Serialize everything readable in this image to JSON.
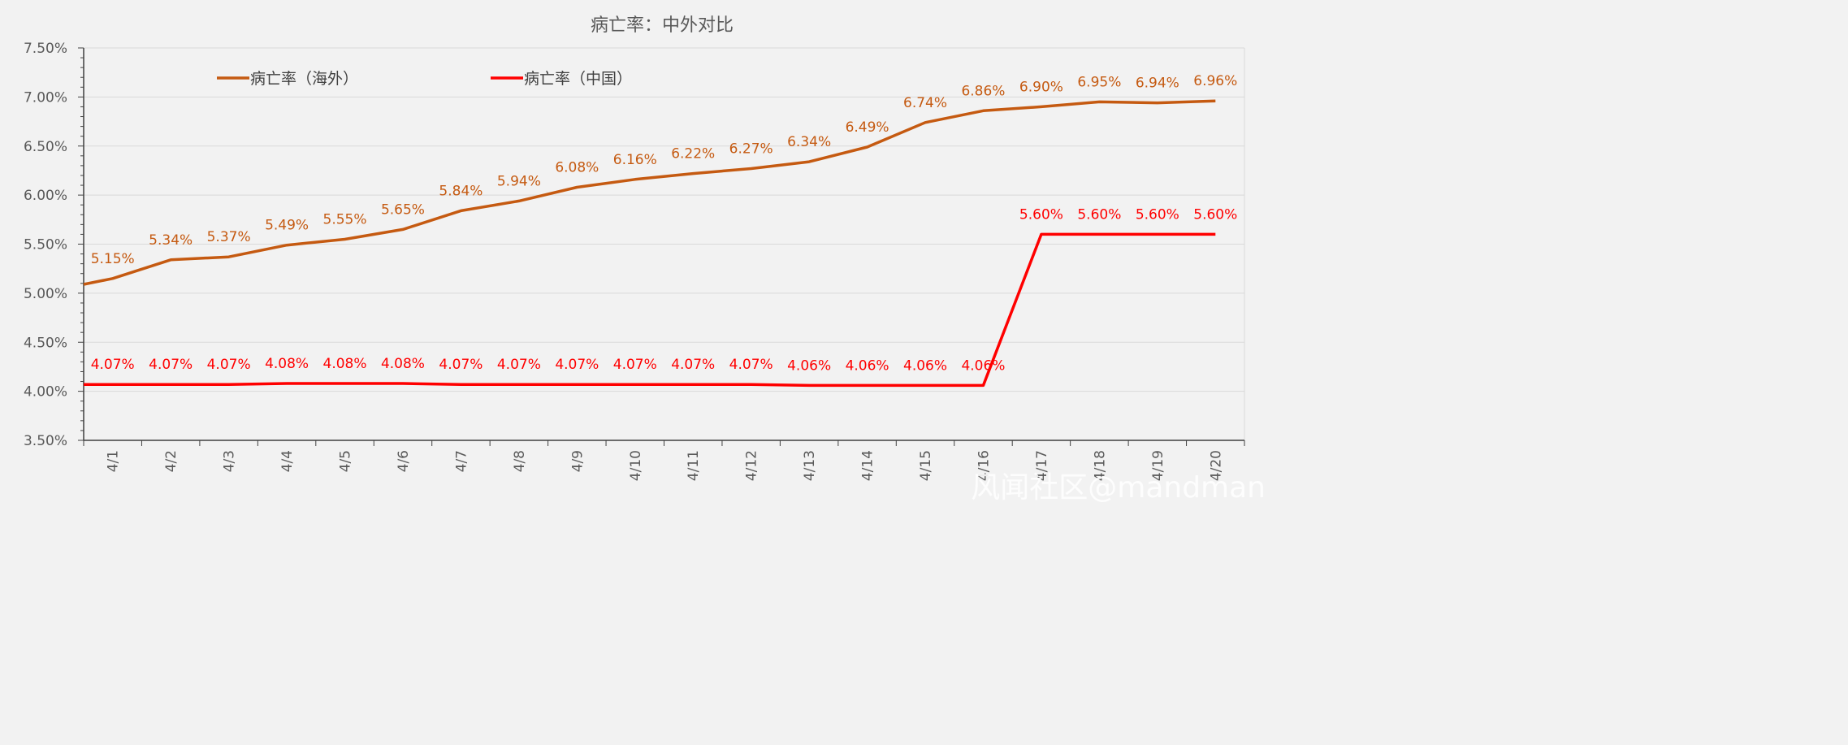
{
  "chart_data": {
    "type": "line",
    "title": "病亡率：中外对比",
    "categories": [
      "4/1",
      "4/2",
      "4/3",
      "4/4",
      "4/5",
      "4/6",
      "4/7",
      "4/8",
      "4/9",
      "4/10",
      "4/11",
      "4/12",
      "4/13",
      "4/14",
      "4/15",
      "4/16",
      "4/17",
      "4/18",
      "4/19",
      "4/20"
    ],
    "y_ticks": [
      "3.50%",
      "4.00%",
      "4.50%",
      "5.00%",
      "5.50%",
      "6.00%",
      "6.50%",
      "7.00%",
      "7.50%"
    ],
    "ylim": [
      3.5,
      7.5
    ],
    "grid": true,
    "legend_position": "top-left",
    "series": [
      {
        "name": "病亡率（海外）",
        "color": "#c55a11",
        "start_value": 5.09,
        "values": [
          5.15,
          5.34,
          5.37,
          5.49,
          5.55,
          5.65,
          5.84,
          5.94,
          6.08,
          6.16,
          6.22,
          6.27,
          6.34,
          6.49,
          6.74,
          6.86,
          6.9,
          6.95,
          6.94,
          6.96
        ],
        "labels": [
          "5.15%",
          "5.34%",
          "5.37%",
          "5.49%",
          "5.55%",
          "5.65%",
          "5.84%",
          "5.94%",
          "6.08%",
          "6.16%",
          "6.22%",
          "6.27%",
          "6.34%",
          "6.49%",
          "6.74%",
          "6.86%",
          "6.90%",
          "6.95%",
          "6.94%",
          "6.96%"
        ]
      },
      {
        "name": "病亡率（中国）",
        "color": "#ff0000",
        "start_value": 4.07,
        "values": [
          4.07,
          4.07,
          4.07,
          4.08,
          4.08,
          4.08,
          4.07,
          4.07,
          4.07,
          4.07,
          4.07,
          4.07,
          4.06,
          4.06,
          4.06,
          4.06,
          5.6,
          5.6,
          5.6,
          5.6
        ],
        "labels": [
          "4.07%",
          "4.07%",
          "4.07%",
          "4.08%",
          "4.08%",
          "4.08%",
          "4.07%",
          "4.07%",
          "4.07%",
          "4.07%",
          "4.07%",
          "4.07%",
          "4.06%",
          "4.06%",
          "4.06%",
          "4.06%",
          "5.60%",
          "5.60%",
          "5.60%",
          "5.60%"
        ]
      }
    ]
  },
  "watermark": "风闻社区@mandman"
}
